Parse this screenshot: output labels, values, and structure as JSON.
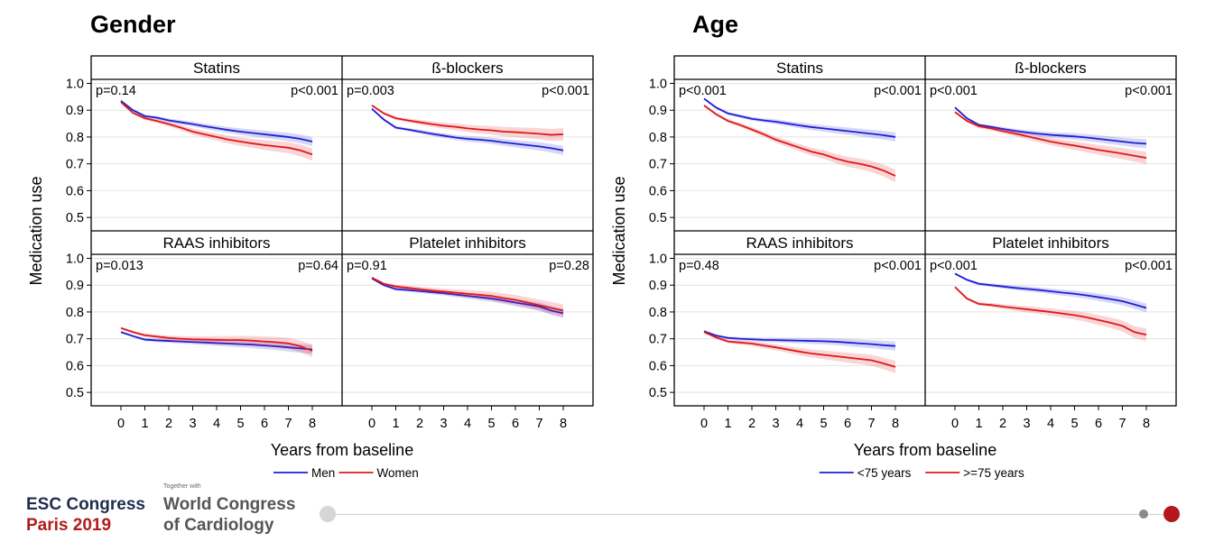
{
  "page_titles": {
    "left": "Gender",
    "right": "Age"
  },
  "footer": {
    "esc_line1": "ESC Congress",
    "esc_line2": "Paris 2019",
    "together_with": "Together with",
    "wcc_line1": "World Congress",
    "wcc_line2": "of Cardiology",
    "colors": {
      "navy": "#1f2d4d",
      "red": "#b31b1b"
    }
  },
  "chart_data": [
    {
      "type": "line",
      "group_title": "Gender",
      "ylabel": "Medication use",
      "xlabel": "Years from baseline",
      "xlim": [
        0,
        8
      ],
      "ylim": [
        0.45,
        1.0
      ],
      "yticks": [
        "0.5",
        "0.6",
        "0.7",
        "0.8",
        "0.9",
        "1.0"
      ],
      "xticks": [
        "0",
        "1",
        "2",
        "3",
        "4",
        "5",
        "6",
        "7",
        "8"
      ],
      "grid": true,
      "legend_position": "bottom",
      "series_meta": [
        {
          "name": "Men",
          "color": "#1f1fd6"
        },
        {
          "name": "Women",
          "color": "#e0171b"
        }
      ],
      "panels": [
        {
          "title": "Statins",
          "p_left": "p=0.14",
          "p_right": "p<0.001",
          "x": [
            0,
            0.5,
            1,
            1.5,
            2,
            2.5,
            3,
            3.5,
            4,
            4.5,
            5,
            5.5,
            6,
            6.5,
            7,
            7.5,
            8
          ],
          "series": [
            {
              "name": "Men",
              "values": [
                0.935,
                0.9,
                0.878,
                0.872,
                0.862,
                0.855,
                0.848,
                0.84,
                0.833,
                0.826,
                0.82,
                0.815,
                0.81,
                0.805,
                0.8,
                0.793,
                0.783
              ]
            },
            {
              "name": "Women",
              "values": [
                0.93,
                0.89,
                0.87,
                0.86,
                0.848,
                0.835,
                0.82,
                0.81,
                0.8,
                0.79,
                0.783,
                0.776,
                0.77,
                0.765,
                0.76,
                0.75,
                0.735
              ]
            }
          ]
        },
        {
          "title": "ß-blockers",
          "p_left": "p=0.003",
          "p_right": "p<0.001",
          "x": [
            0,
            0.5,
            1,
            1.5,
            2,
            2.5,
            3,
            3.5,
            4,
            4.5,
            5,
            5.5,
            6,
            6.5,
            7,
            7.5,
            8
          ],
          "series": [
            {
              "name": "Men",
              "values": [
                0.905,
                0.865,
                0.835,
                0.828,
                0.82,
                0.812,
                0.805,
                0.798,
                0.793,
                0.79,
                0.786,
                0.78,
                0.775,
                0.77,
                0.765,
                0.758,
                0.75
              ]
            },
            {
              "name": "Women",
              "values": [
                0.918,
                0.888,
                0.87,
                0.862,
                0.855,
                0.848,
                0.842,
                0.838,
                0.832,
                0.828,
                0.825,
                0.82,
                0.818,
                0.815,
                0.812,
                0.808,
                0.81
              ]
            }
          ]
        },
        {
          "title": "RAAS inhibitors",
          "p_left": "p=0.013",
          "p_right": "p=0.64",
          "x": [
            0,
            0.5,
            1,
            1.5,
            2,
            2.5,
            3,
            3.5,
            4,
            4.5,
            5,
            5.5,
            6,
            6.5,
            7,
            7.5,
            8
          ],
          "series": [
            {
              "name": "Men",
              "values": [
                0.725,
                0.71,
                0.697,
                0.694,
                0.692,
                0.69,
                0.688,
                0.686,
                0.684,
                0.682,
                0.68,
                0.678,
                0.675,
                0.672,
                0.668,
                0.664,
                0.66
              ]
            },
            {
              "name": "Women",
              "values": [
                0.74,
                0.725,
                0.713,
                0.708,
                0.703,
                0.7,
                0.698,
                0.697,
                0.696,
                0.695,
                0.695,
                0.693,
                0.69,
                0.687,
                0.683,
                0.672,
                0.655
              ]
            }
          ]
        },
        {
          "title": "Platelet inhibitors",
          "p_left": "p=0.91",
          "p_right": "p=0.28",
          "x": [
            0,
            0.5,
            1,
            1.5,
            2,
            2.5,
            3,
            3.5,
            4,
            4.5,
            5,
            5.5,
            6,
            6.5,
            7,
            7.5,
            8
          ],
          "series": [
            {
              "name": "Men",
              "values": [
                0.925,
                0.9,
                0.885,
                0.882,
                0.878,
                0.874,
                0.87,
                0.865,
                0.86,
                0.855,
                0.85,
                0.843,
                0.835,
                0.828,
                0.82,
                0.805,
                0.795
              ]
            },
            {
              "name": "Women",
              "values": [
                0.928,
                0.905,
                0.895,
                0.89,
                0.885,
                0.88,
                0.876,
                0.872,
                0.868,
                0.864,
                0.86,
                0.852,
                0.845,
                0.835,
                0.825,
                0.815,
                0.805
              ]
            }
          ]
        }
      ]
    },
    {
      "type": "line",
      "group_title": "Age",
      "ylabel": "Medication use",
      "xlabel": "Years from baseline",
      "xlim": [
        0,
        8
      ],
      "ylim": [
        0.45,
        1.0
      ],
      "yticks": [
        "0.5",
        "0.6",
        "0.7",
        "0.8",
        "0.9",
        "1.0"
      ],
      "xticks": [
        "0",
        "1",
        "2",
        "3",
        "4",
        "5",
        "6",
        "7",
        "8"
      ],
      "grid": true,
      "legend_position": "bottom",
      "series_meta": [
        {
          "name": "<75 years",
          "color": "#1f1fd6"
        },
        {
          "name": ">=75 years",
          "color": "#e0171b"
        }
      ],
      "panels": [
        {
          "title": "Statins",
          "p_left": "p<0.001",
          "p_right": "p<0.001",
          "x": [
            0,
            0.5,
            1,
            1.5,
            2,
            2.5,
            3,
            3.5,
            4,
            4.5,
            5,
            5.5,
            6,
            6.5,
            7,
            7.5,
            8
          ],
          "series": [
            {
              "name": "<75 years",
              "values": [
                0.943,
                0.91,
                0.888,
                0.878,
                0.868,
                0.862,
                0.857,
                0.85,
                0.843,
                0.837,
                0.832,
                0.827,
                0.822,
                0.817,
                0.812,
                0.807,
                0.8
              ]
            },
            {
              "name": ">=75 years",
              "values": [
                0.918,
                0.885,
                0.86,
                0.845,
                0.828,
                0.81,
                0.79,
                0.775,
                0.76,
                0.745,
                0.735,
                0.72,
                0.708,
                0.7,
                0.69,
                0.675,
                0.655
              ]
            }
          ]
        },
        {
          "title": "ß-blockers",
          "p_left": "p<0.001",
          "p_right": "p<0.001",
          "x": [
            0,
            0.5,
            1,
            1.5,
            2,
            2.5,
            3,
            3.5,
            4,
            4.5,
            5,
            5.5,
            6,
            6.5,
            7,
            7.5,
            8
          ],
          "series": [
            {
              "name": "<75 years",
              "values": [
                0.91,
                0.87,
                0.845,
                0.838,
                0.83,
                0.823,
                0.817,
                0.812,
                0.808,
                0.805,
                0.802,
                0.798,
                0.793,
                0.788,
                0.783,
                0.778,
                0.775
              ]
            },
            {
              "name": ">=75 years",
              "values": [
                0.893,
                0.86,
                0.84,
                0.832,
                0.822,
                0.813,
                0.803,
                0.793,
                0.783,
                0.775,
                0.768,
                0.76,
                0.752,
                0.745,
                0.738,
                0.73,
                0.722
              ]
            }
          ]
        },
        {
          "title": "RAAS inhibitors",
          "p_left": "p=0.48",
          "p_right": "p<0.001",
          "x": [
            0,
            0.5,
            1,
            1.5,
            2,
            2.5,
            3,
            3.5,
            4,
            4.5,
            5,
            5.5,
            6,
            6.5,
            7,
            7.5,
            8
          ],
          "series": [
            {
              "name": "<75 years",
              "values": [
                0.728,
                0.712,
                0.703,
                0.7,
                0.698,
                0.696,
                0.695,
                0.694,
                0.693,
                0.692,
                0.691,
                0.689,
                0.686,
                0.683,
                0.68,
                0.676,
                0.673
              ]
            },
            {
              "name": ">=75 years",
              "values": [
                0.725,
                0.705,
                0.69,
                0.686,
                0.682,
                0.675,
                0.668,
                0.66,
                0.652,
                0.645,
                0.64,
                0.635,
                0.63,
                0.625,
                0.62,
                0.608,
                0.595
              ]
            }
          ]
        },
        {
          "title": "Platelet inhibitors",
          "p_left": "p<0.001",
          "p_right": "p<0.001",
          "x": [
            0,
            0.5,
            1,
            1.5,
            2,
            2.5,
            3,
            3.5,
            4,
            4.5,
            5,
            5.5,
            6,
            6.5,
            7,
            7.5,
            8
          ],
          "series": [
            {
              "name": "<75 years",
              "values": [
                0.943,
                0.92,
                0.905,
                0.9,
                0.895,
                0.89,
                0.886,
                0.882,
                0.877,
                0.872,
                0.868,
                0.862,
                0.855,
                0.848,
                0.84,
                0.828,
                0.815
              ]
            },
            {
              "name": ">=75 years",
              "values": [
                0.893,
                0.85,
                0.83,
                0.826,
                0.82,
                0.815,
                0.81,
                0.805,
                0.8,
                0.794,
                0.788,
                0.78,
                0.77,
                0.76,
                0.748,
                0.725,
                0.715
              ]
            }
          ]
        }
      ]
    }
  ]
}
